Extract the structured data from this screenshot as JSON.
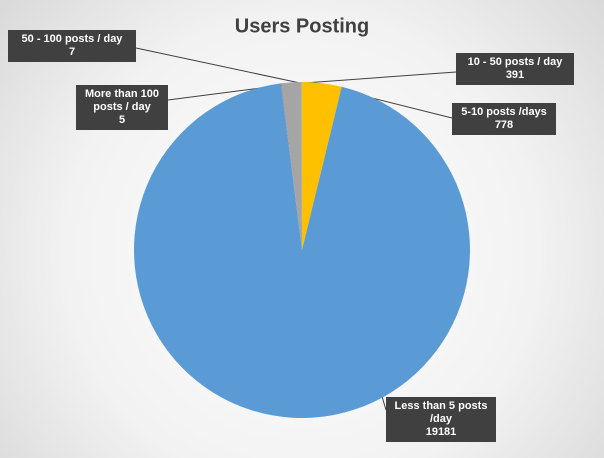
{
  "chart_data": {
    "type": "pie",
    "title": "Users Posting",
    "categories": [
      "10 - 50 posts  / day",
      "5-10 posts  /days",
      "Less than 5 posts /day",
      "50 - 100 posts / day",
      "More than 100 posts / day"
    ],
    "values": [
      391,
      778,
      19181,
      7,
      5
    ],
    "colors": [
      "#a5a5a5",
      "#ffc000",
      "#5b9bd5",
      "#ed7d31",
      "#4472c4"
    ]
  }
}
